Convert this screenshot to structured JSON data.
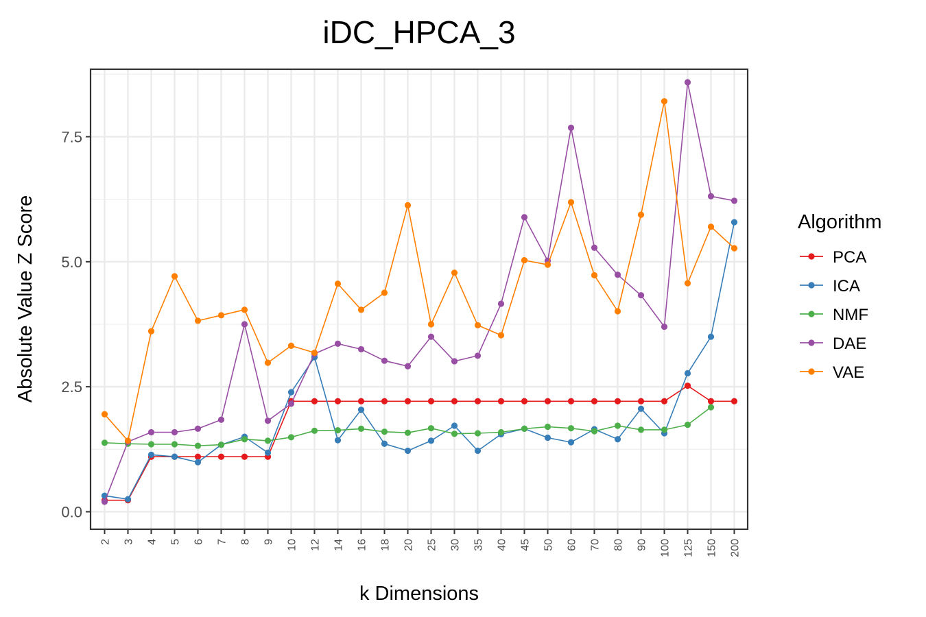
{
  "chart_data": {
    "type": "line",
    "title": "iDC_HPCA_3",
    "xlabel": "k Dimensions",
    "ylabel": "Absolute Value Z Score",
    "categories": [
      "2",
      "3",
      "4",
      "5",
      "6",
      "7",
      "8",
      "9",
      "10",
      "12",
      "14",
      "16",
      "18",
      "20",
      "25",
      "30",
      "35",
      "40",
      "45",
      "50",
      "60",
      "70",
      "80",
      "90",
      "100",
      "125",
      "150",
      "200"
    ],
    "ylim": [
      -0.35,
      8.85
    ],
    "yticks": [
      0.0,
      2.5,
      5.0,
      7.5
    ],
    "ytick_labels": [
      "0.0",
      "2.5",
      "5.0",
      "7.5"
    ],
    "grid": true,
    "legend": {
      "title": "Algorithm",
      "position": "right"
    },
    "series": [
      {
        "name": "PCA",
        "color": "#e41a1c",
        "values": [
          0.23,
          0.23,
          1.1,
          1.1,
          1.1,
          1.1,
          1.1,
          1.1,
          2.21,
          2.21,
          2.21,
          2.21,
          2.21,
          2.21,
          2.21,
          2.21,
          2.21,
          2.21,
          2.21,
          2.21,
          2.21,
          2.21,
          2.21,
          2.21,
          2.21,
          2.52,
          2.21,
          2.21
        ]
      },
      {
        "name": "ICA",
        "color": "#377eb8",
        "values": [
          0.32,
          0.25,
          1.14,
          1.1,
          0.99,
          1.34,
          1.5,
          1.18,
          2.39,
          3.09,
          1.43,
          2.04,
          1.36,
          1.22,
          1.42,
          1.72,
          1.22,
          1.55,
          1.66,
          1.48,
          1.39,
          1.65,
          1.45,
          2.06,
          1.57,
          2.77,
          3.5,
          5.79
        ]
      },
      {
        "name": "NMF",
        "color": "#4daf4a",
        "values": [
          1.38,
          1.36,
          1.35,
          1.35,
          1.32,
          1.34,
          1.45,
          1.42,
          1.49,
          1.62,
          1.63,
          1.66,
          1.6,
          1.58,
          1.67,
          1.56,
          1.57,
          1.59,
          1.66,
          1.7,
          1.67,
          1.61,
          1.72,
          1.64,
          1.64,
          1.74,
          2.09,
          null
        ]
      },
      {
        "name": "DAE",
        "color": "#984ea3",
        "values": [
          0.2,
          1.4,
          1.59,
          1.59,
          1.66,
          1.84,
          3.75,
          1.82,
          2.16,
          3.16,
          3.36,
          3.25,
          3.02,
          2.91,
          3.5,
          3.01,
          3.12,
          4.16,
          5.89,
          5.02,
          7.68,
          5.28,
          4.74,
          4.33,
          3.7,
          8.59,
          6.31,
          6.22
        ]
      },
      {
        "name": "VAE",
        "color": "#ff7f00",
        "values": [
          1.95,
          1.42,
          3.61,
          4.71,
          3.82,
          3.93,
          4.04,
          2.98,
          3.32,
          3.18,
          4.56,
          4.04,
          4.38,
          6.13,
          3.75,
          4.78,
          3.73,
          3.53,
          5.03,
          4.94,
          6.19,
          4.73,
          4.01,
          5.94,
          8.21,
          4.57,
          5.7,
          5.27
        ]
      }
    ]
  }
}
